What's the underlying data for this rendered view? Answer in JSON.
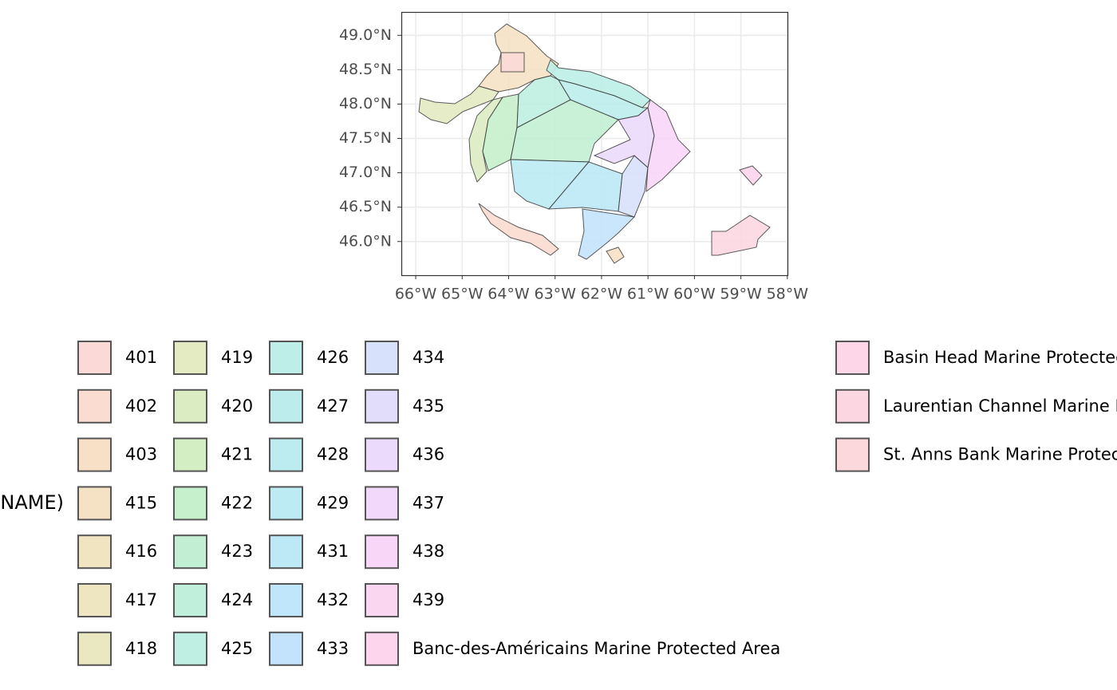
{
  "chart_data": {
    "type": "map",
    "xlim": [
      -66.31,
      -57.98
    ],
    "ylim": [
      45.51,
      49.34
    ],
    "xticks": [
      {
        "value": -66,
        "label": "66°W"
      },
      {
        "value": -65,
        "label": "65°W"
      },
      {
        "value": -64,
        "label": "64°W"
      },
      {
        "value": -63,
        "label": "63°W"
      },
      {
        "value": -62,
        "label": "62°W"
      },
      {
        "value": -61,
        "label": "61°W"
      },
      {
        "value": -60,
        "label": "60°W"
      },
      {
        "value": -59,
        "label": "59°W"
      },
      {
        "value": -58,
        "label": "58°W"
      }
    ],
    "yticks": [
      {
        "value": 46.0,
        "label": "46.0°N"
      },
      {
        "value": 46.5,
        "label": "46.5°N"
      },
      {
        "value": 47.0,
        "label": "47.0°N"
      },
      {
        "value": 47.5,
        "label": "47.5°N"
      },
      {
        "value": 48.0,
        "label": "48.0°N"
      },
      {
        "value": 48.5,
        "label": "48.5°N"
      },
      {
        "value": 49.0,
        "label": "49.0°N"
      }
    ],
    "grid": true,
    "legend_title": "NAME)",
    "legend": [
      {
        "name": "401",
        "color": "#fbd9d7"
      },
      {
        "name": "402",
        "color": "#fbdcd0"
      },
      {
        "name": "403",
        "color": "#f8e0c6"
      },
      {
        "name": "415",
        "color": "#f5e2c4"
      },
      {
        "name": "416",
        "color": "#f1e4c1"
      },
      {
        "name": "417",
        "color": "#ede6c0"
      },
      {
        "name": "418",
        "color": "#e9e8c0"
      },
      {
        "name": "419",
        "color": "#e4eac2"
      },
      {
        "name": "420",
        "color": "#dcecc2"
      },
      {
        "name": "421",
        "color": "#d4eec4"
      },
      {
        "name": "422",
        "color": "#c6efcb"
      },
      {
        "name": "423",
        "color": "#c2efd4"
      },
      {
        "name": "424",
        "color": "#c0efdc"
      },
      {
        "name": "425",
        "color": "#bfefe2"
      },
      {
        "name": "426",
        "color": "#bdeee7"
      },
      {
        "name": "427",
        "color": "#bcedec"
      },
      {
        "name": "428",
        "color": "#bcecf0"
      },
      {
        "name": "429",
        "color": "#bcebf3"
      },
      {
        "name": "431",
        "color": "#bde9f6"
      },
      {
        "name": "432",
        "color": "#bfe6fa"
      },
      {
        "name": "433",
        "color": "#c3e3fc"
      },
      {
        "name": "434",
        "color": "#d8e1fc"
      },
      {
        "name": "435",
        "color": "#e3ddfc"
      },
      {
        "name": "436",
        "color": "#ebdafc"
      },
      {
        "name": "437",
        "color": "#f2d8fb"
      },
      {
        "name": "438",
        "color": "#f8d6f7"
      },
      {
        "name": "439",
        "color": "#fbd6f1"
      },
      {
        "name": "Banc-des-Américains Marine Protected Area",
        "color": "#fdd5ec"
      },
      {
        "name": "Basin Head Marine Protected Area",
        "color": "#fdd6e7"
      },
      {
        "name": "Laurentian Channel Marine Protected Area",
        "color": "#fcd7e2"
      },
      {
        "name": "St. Anns Bank Marine Protected Area",
        "color": "#fcd8dd"
      }
    ]
  }
}
